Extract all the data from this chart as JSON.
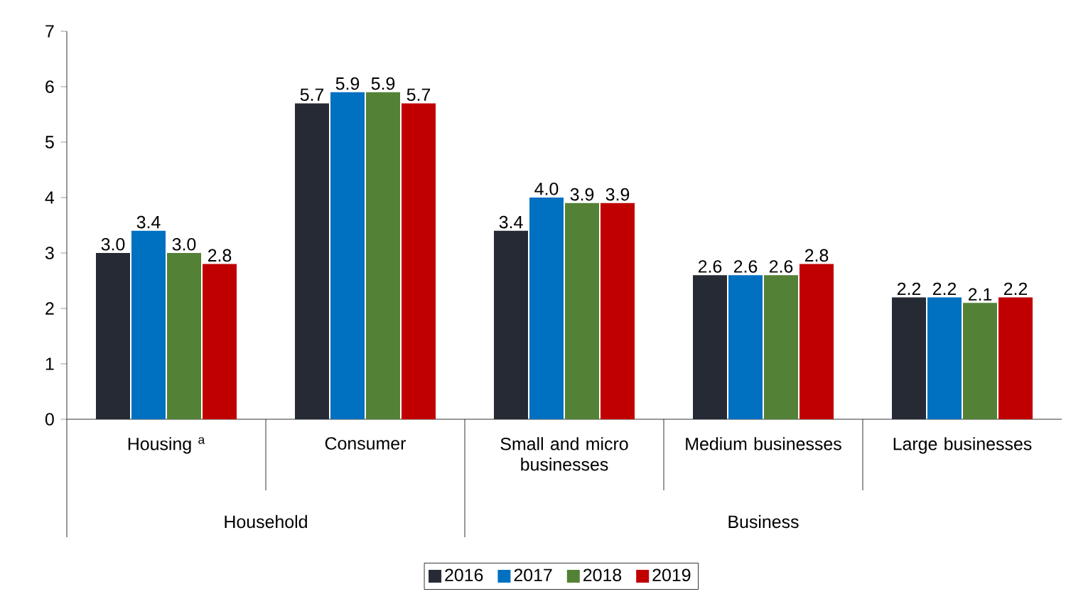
{
  "chart_data": {
    "type": "bar",
    "categories": [
      "Housing $^{a}$",
      "Consumer",
      "Small and micro businesses",
      "Medium businesses",
      "Large businesses"
    ],
    "series": [
      {
        "name": "2016",
        "color": "#252a35",
        "values": [
          3.0,
          5.7,
          3.4,
          2.6,
          2.2
        ],
        "value_labels": [
          "3.0",
          "5.7",
          "3.4",
          "2.6",
          "2.2"
        ]
      },
      {
        "name": "2017",
        "color": "#0070c0",
        "values": [
          3.4,
          5.9,
          4.0,
          2.6,
          2.2
        ],
        "value_labels": [
          "3.4",
          "5.9",
          "4.0",
          "2.6",
          "2.2"
        ]
      },
      {
        "name": "2018",
        "color": "#538135",
        "values": [
          3.0,
          5.9,
          3.9,
          2.6,
          2.1
        ],
        "value_labels": [
          "3.0",
          "5.9",
          "3.9",
          "2.6",
          "2.1"
        ]
      },
      {
        "name": "2019",
        "color": "#c00000",
        "values": [
          2.8,
          5.7,
          3.9,
          2.8,
          2.2
        ],
        "value_labels": [
          "2.8",
          "5.7",
          "3.9",
          "2.8",
          "2.2"
        ]
      }
    ],
    "annotations": [
      "Household",
      "Business"
    ],
    "ylim": [
      0,
      7
    ],
    "yticks": [
      0,
      1,
      2,
      3,
      4,
      5,
      6,
      7
    ],
    "grid": false,
    "legend": "bottom"
  }
}
